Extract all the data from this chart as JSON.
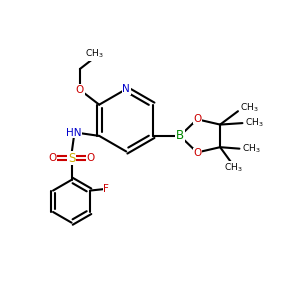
{
  "bg_color": "#ffffff",
  "atom_colors": {
    "N": "#0000cc",
    "O": "#cc0000",
    "S": "#ccaa00",
    "B": "#008800",
    "F": "#cc0000"
  },
  "bond_color": "#000000",
  "bond_lw": 1.5,
  "fig_size": [
    3.0,
    3.0
  ],
  "dpi": 100,
  "xlim": [
    0,
    10
  ],
  "ylim": [
    0,
    10
  ],
  "font_size_atom": 7.5,
  "font_size_methyl": 6.5
}
